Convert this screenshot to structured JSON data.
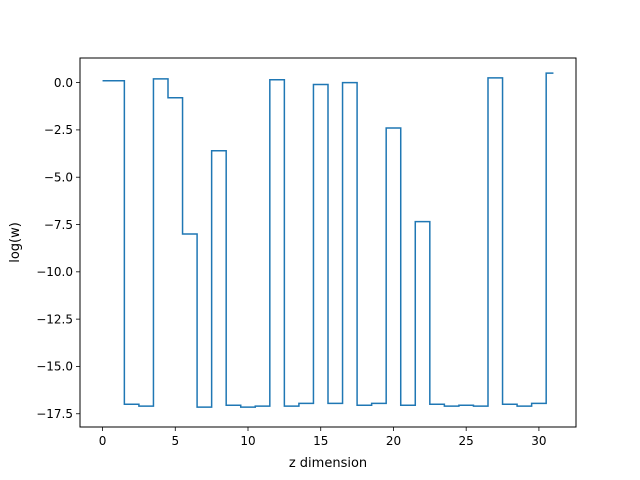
{
  "chart_data": {
    "type": "line",
    "drawstyle": "steps-mid",
    "title": "",
    "xlabel": "z dimension",
    "ylabel": "log(w)",
    "xlim": [
      -1.55,
      32.55
    ],
    "ylim": [
      -18.2,
      1.3
    ],
    "xticks": [
      0,
      5,
      10,
      15,
      20,
      25,
      30
    ],
    "xtick_labels": [
      "0",
      "5",
      "10",
      "15",
      "20",
      "25",
      "30"
    ],
    "yticks": [
      0.0,
      -2.5,
      -5.0,
      -7.5,
      -10.0,
      -12.5,
      -15.0,
      -17.5
    ],
    "ytick_labels": [
      "0.0",
      "−2.5",
      "−5.0",
      "−7.5",
      "−10.0",
      "−12.5",
      "−15.0",
      "−17.5"
    ],
    "grid": false,
    "legend": "none",
    "series": [
      {
        "color": "#1f77b4",
        "x": [
          0,
          1,
          2,
          3,
          4,
          5,
          6,
          7,
          8,
          9,
          10,
          11,
          12,
          13,
          14,
          15,
          16,
          17,
          18,
          19,
          20,
          21,
          22,
          23,
          24,
          25,
          26,
          27,
          28,
          29,
          30,
          31
        ],
        "values": [
          0.1,
          0.1,
          -17.0,
          -17.1,
          0.2,
          -0.8,
          -8.0,
          -17.15,
          -3.6,
          -17.05,
          -17.15,
          -17.1,
          0.15,
          -17.1,
          -16.95,
          -0.1,
          -16.95,
          0.0,
          -17.05,
          -16.95,
          -2.4,
          -17.05,
          -7.35,
          -17.0,
          -17.1,
          -17.05,
          -17.1,
          0.25,
          -17.0,
          -17.1,
          -16.95,
          0.5
        ]
      }
    ]
  }
}
